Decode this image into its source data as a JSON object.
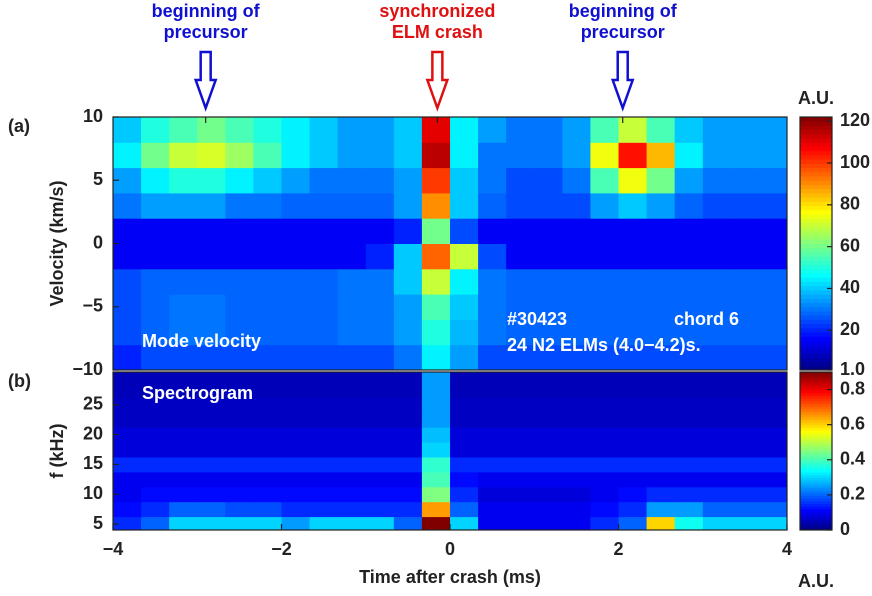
{
  "chart_data": [
    {
      "type": "heatmap",
      "panel": "(a)",
      "name": "Mode velocity",
      "ylabel": "Velocity (km/s)",
      "notes": [
        "#30423",
        "chord 6",
        "24 N2 ELMs (4.0−4.2)s."
      ],
      "annotations": [
        {
          "x": -2.9,
          "text": [
            "beginning of",
            "precursor"
          ],
          "color": "#1010d0"
        },
        {
          "x": -0.15,
          "text": [
            "synchronized",
            "ELM crash"
          ],
          "color": "#e01010"
        },
        {
          "x": 2.05,
          "text": [
            "beginning of",
            "precursor"
          ],
          "color": "#1010d0"
        }
      ],
      "colormap": "jet",
      "x": [
        -3.833,
        -3.5,
        -3.167,
        -2.833,
        -2.5,
        -2.167,
        -1.833,
        -1.5,
        -1.167,
        -0.833,
        -0.5,
        -0.167,
        0.167,
        0.5,
        0.833,
        1.167,
        1.5,
        1.833,
        2.167,
        2.5,
        2.833,
        3.167,
        3.5,
        3.833
      ],
      "y": [
        -9,
        -7,
        -5,
        -3,
        -1,
        1,
        3,
        5,
        7,
        9
      ],
      "values": [
        [
          20,
          25,
          25,
          25,
          25,
          25,
          25,
          25,
          25,
          25,
          30,
          45,
          35,
          25,
          25,
          25,
          25,
          25,
          25,
          25,
          25,
          25,
          25,
          25
        ],
        [
          25,
          28,
          30,
          30,
          28,
          28,
          28,
          28,
          30,
          30,
          35,
          50,
          38,
          30,
          28,
          28,
          28,
          28,
          28,
          28,
          28,
          28,
          28,
          28
        ],
        [
          25,
          28,
          30,
          30,
          28,
          28,
          28,
          28,
          30,
          30,
          35,
          55,
          40,
          30,
          28,
          28,
          28,
          28,
          28,
          28,
          28,
          28,
          28,
          28
        ],
        [
          25,
          28,
          28,
          28,
          28,
          28,
          28,
          28,
          30,
          30,
          40,
          70,
          45,
          30,
          28,
          28,
          28,
          28,
          28,
          28,
          28,
          28,
          28,
          28
        ],
        [
          15,
          15,
          15,
          15,
          15,
          15,
          15,
          15,
          15,
          20,
          40,
          95,
          70,
          25,
          15,
          15,
          15,
          15,
          15,
          15,
          15,
          15,
          15,
          15
        ],
        [
          15,
          15,
          15,
          15,
          15,
          15,
          15,
          15,
          15,
          15,
          20,
          60,
          25,
          15,
          15,
          15,
          15,
          15,
          15,
          15,
          15,
          15,
          15,
          15
        ],
        [
          30,
          35,
          35,
          35,
          30,
          30,
          28,
          28,
          28,
          28,
          35,
          90,
          40,
          28,
          25,
          25,
          25,
          35,
          40,
          35,
          28,
          25,
          25,
          25
        ],
        [
          35,
          45,
          50,
          50,
          45,
          40,
          35,
          30,
          30,
          30,
          35,
          100,
          40,
          30,
          25,
          25,
          30,
          55,
          75,
          60,
          35,
          30,
          30,
          30
        ],
        [
          45,
          60,
          70,
          72,
          65,
          55,
          45,
          40,
          35,
          35,
          40,
          115,
          45,
          30,
          30,
          30,
          35,
          75,
          105,
          85,
          45,
          35,
          35,
          35
        ],
        [
          40,
          50,
          55,
          60,
          55,
          50,
          45,
          40,
          35,
          35,
          40,
          110,
          45,
          35,
          30,
          30,
          35,
          55,
          70,
          55,
          40,
          35,
          35,
          35
        ]
      ],
      "xlim": [
        -4,
        4
      ],
      "ylim": [
        -10,
        10
      ],
      "yticks": [
        {
          "value": -10,
          "label": "−10"
        },
        {
          "value": -5,
          "label": "−5"
        },
        0,
        5,
        10
      ],
      "colorbar": {
        "label": "A.U.",
        "lim": [
          1,
          122
        ],
        "ticks": [
          {
            "value": 1,
            "label": "1.0"
          },
          20,
          40,
          60,
          80,
          100,
          120
        ]
      }
    },
    {
      "type": "heatmap",
      "panel": "(b)",
      "name": "Spectrogram",
      "ylabel": "f (kHz)",
      "xlabel": "Time after crash (ms)",
      "colormap": "jet",
      "x": [
        -3.833,
        -3.5,
        -3.167,
        -2.833,
        -2.5,
        -2.167,
        -1.833,
        -1.5,
        -1.167,
        -0.833,
        -0.5,
        -0.167,
        0.167,
        0.5,
        0.833,
        1.167,
        1.5,
        1.833,
        2.167,
        2.5,
        2.833,
        3.167,
        3.5,
        3.833
      ],
      "y": [
        5,
        7.5,
        10,
        12.5,
        15,
        17.5,
        20,
        22.5,
        25,
        27.5,
        30
      ],
      "values": [
        [
          0.15,
          0.2,
          0.3,
          0.3,
          0.3,
          0.3,
          0.25,
          0.3,
          0.3,
          0.3,
          0.2,
          0.9,
          0.3,
          0.1,
          0.1,
          0.1,
          0.1,
          0.15,
          0.2,
          0.6,
          0.35,
          0.3,
          0.3,
          0.3
        ],
        [
          0.12,
          0.15,
          0.2,
          0.2,
          0.18,
          0.18,
          0.15,
          0.15,
          0.15,
          0.15,
          0.15,
          0.65,
          0.2,
          0.1,
          0.1,
          0.1,
          0.1,
          0.12,
          0.15,
          0.25,
          0.25,
          0.2,
          0.2,
          0.2
        ],
        [
          0.1,
          0.12,
          0.12,
          0.12,
          0.12,
          0.12,
          0.12,
          0.12,
          0.12,
          0.12,
          0.12,
          0.45,
          0.15,
          0.08,
          0.08,
          0.08,
          0.08,
          0.1,
          0.12,
          0.15,
          0.15,
          0.15,
          0.15,
          0.15
        ],
        [
          0.1,
          0.1,
          0.1,
          0.1,
          0.1,
          0.1,
          0.1,
          0.1,
          0.1,
          0.1,
          0.1,
          0.4,
          0.12,
          0.1,
          0.1,
          0.1,
          0.1,
          0.1,
          0.1,
          0.1,
          0.1,
          0.1,
          0.1,
          0.1
        ],
        [
          0.15,
          0.15,
          0.15,
          0.15,
          0.15,
          0.15,
          0.15,
          0.15,
          0.15,
          0.15,
          0.15,
          0.38,
          0.15,
          0.15,
          0.15,
          0.15,
          0.15,
          0.15,
          0.15,
          0.15,
          0.15,
          0.15,
          0.15,
          0.15
        ],
        [
          0.08,
          0.08,
          0.08,
          0.08,
          0.08,
          0.08,
          0.08,
          0.08,
          0.08,
          0.08,
          0.08,
          0.3,
          0.08,
          0.08,
          0.08,
          0.08,
          0.08,
          0.08,
          0.08,
          0.08,
          0.08,
          0.08,
          0.08,
          0.08
        ],
        [
          0.08,
          0.08,
          0.08,
          0.08,
          0.08,
          0.08,
          0.08,
          0.08,
          0.08,
          0.08,
          0.08,
          0.28,
          0.08,
          0.08,
          0.08,
          0.08,
          0.08,
          0.08,
          0.08,
          0.08,
          0.08,
          0.08,
          0.08,
          0.08
        ],
        [
          0.06,
          0.06,
          0.06,
          0.06,
          0.06,
          0.06,
          0.06,
          0.06,
          0.06,
          0.06,
          0.06,
          0.25,
          0.06,
          0.06,
          0.06,
          0.06,
          0.06,
          0.06,
          0.06,
          0.06,
          0.06,
          0.06,
          0.06,
          0.06
        ],
        [
          0.06,
          0.06,
          0.06,
          0.06,
          0.06,
          0.06,
          0.06,
          0.06,
          0.06,
          0.06,
          0.06,
          0.25,
          0.06,
          0.06,
          0.06,
          0.06,
          0.06,
          0.06,
          0.06,
          0.06,
          0.06,
          0.06,
          0.06,
          0.06
        ],
        [
          0.05,
          0.05,
          0.05,
          0.05,
          0.05,
          0.05,
          0.05,
          0.05,
          0.05,
          0.05,
          0.05,
          0.25,
          0.05,
          0.05,
          0.05,
          0.05,
          0.05,
          0.05,
          0.05,
          0.05,
          0.05,
          0.05,
          0.05,
          0.05
        ],
        [
          0.05,
          0.05,
          0.05,
          0.05,
          0.05,
          0.05,
          0.05,
          0.05,
          0.05,
          0.05,
          0.05,
          0.25,
          0.05,
          0.05,
          0.05,
          0.05,
          0.05,
          0.05,
          0.05,
          0.05,
          0.05,
          0.05,
          0.05,
          0.05
        ]
      ],
      "xlim": [
        -4,
        4
      ],
      "ylim": [
        4,
        30.5
      ],
      "xticks": [
        {
          "value": -4,
          "label": "−4"
        },
        {
          "value": -2,
          "label": "−2"
        },
        0,
        2,
        4
      ],
      "yticks": [
        5,
        10,
        15,
        20,
        25
      ],
      "colorbar": {
        "label": "A.U.",
        "lim": [
          0,
          0.9
        ],
        "ticks": [
          0,
          0.2,
          0.4,
          0.6,
          0.8
        ]
      }
    }
  ]
}
